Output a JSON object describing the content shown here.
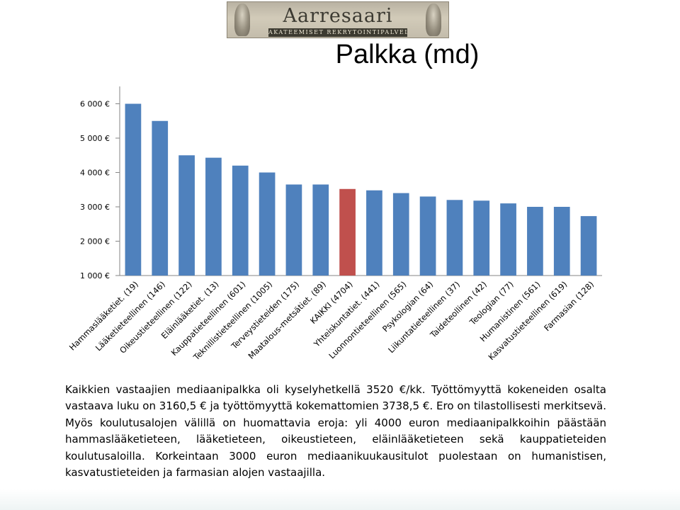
{
  "logo": {
    "name": "Aarresaari",
    "tagline": "AKATEEMISET REKRYTOINTIPALVELUT"
  },
  "chart_data": {
    "type": "bar",
    "title": "Palkka (md)",
    "categories": [
      "Hammaslääketiet. (19)",
      "Lääketieteellinen (146)",
      "Oikeustieteellinen (122)",
      "Eläinlääketiet. (13)",
      "Kauppatieteellinen (601)",
      "Teknillistieteellinen (1005)",
      "Terveystieteiden (175)",
      "Maatalous-metsätiet. (89)",
      "KAIKKI (4704)",
      "Yhteiskuntatiet. (441)",
      "Luonnontieteellinen (565)",
      "Psykologian (64)",
      "Liikuntatieteellinen (37)",
      "Taideteollinen (42)",
      "Teologian (77)",
      "Humanistinen (561)",
      "Kasvatustieteellinen (619)",
      "Farmasian (128)"
    ],
    "values": [
      6000,
      5500,
      4500,
      4430,
      4200,
      4000,
      3650,
      3650,
      3520,
      3480,
      3400,
      3300,
      3200,
      3180,
      3100,
      3000,
      3000,
      2730
    ],
    "ylim": [
      1000,
      6000
    ],
    "yticks": [
      1000,
      2000,
      3000,
      4000,
      5000,
      6000
    ],
    "ytick_labels": [
      "1 000 €",
      "2 000 €",
      "3 000 €",
      "4 000 €",
      "5 000 €",
      "6 000 €"
    ],
    "xlabel": "",
    "ylabel": "",
    "grid": false,
    "colors": {
      "bar": "#4f81bd",
      "highlight": "#c0504d"
    },
    "highlight_index": 8
  },
  "paragraph": "Kaikkien vastaajien mediaanipalkka oli kyselyhetkellä 3520 €/kk. Työttömyyttä kokeneiden osalta vastaava luku on 3160,5 € ja työttömyyttä kokemattomien 3738,5 €. Ero on tilastollisesti merkitsevä. Myös koulutusalojen välillä on huomattavia eroja: yli 4000 euron mediaanipalkkoihin päästään hammaslääketieteen, lääketieteen, oikeustieteen, eläinlääketieteen sekä kauppatieteiden koulutusaloilla. Korkeintaan 3000 euron mediaanikuukausitulot puolestaan on humanistisen, kasvatustieteiden ja farmasian alojen vastaajilla."
}
